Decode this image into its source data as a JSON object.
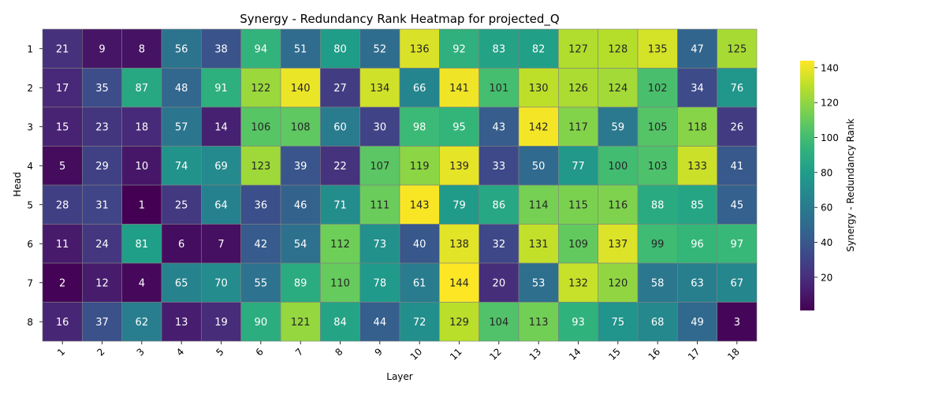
{
  "chart_data": {
    "type": "heatmap",
    "title": "Synergy - Redundancy Rank Heatmap for projected_Q",
    "xlabel": "Layer",
    "ylabel": "Head",
    "x_categories": [
      "1",
      "2",
      "3",
      "4",
      "5",
      "6",
      "7",
      "8",
      "9",
      "10",
      "11",
      "12",
      "13",
      "14",
      "15",
      "16",
      "17",
      "18"
    ],
    "y_categories": [
      "1",
      "2",
      "3",
      "4",
      "5",
      "6",
      "7",
      "8"
    ],
    "values": [
      [
        21,
        9,
        8,
        56,
        38,
        94,
        51,
        80,
        52,
        136,
        92,
        83,
        82,
        127,
        128,
        135,
        47,
        125
      ],
      [
        17,
        35,
        87,
        48,
        91,
        122,
        140,
        27,
        134,
        66,
        141,
        101,
        130,
        126,
        124,
        102,
        34,
        76
      ],
      [
        15,
        23,
        18,
        57,
        14,
        106,
        108,
        60,
        30,
        98,
        95,
        43,
        142,
        117,
        59,
        105,
        118,
        26
      ],
      [
        5,
        29,
        10,
        74,
        69,
        123,
        39,
        22,
        107,
        119,
        139,
        33,
        50,
        77,
        100,
        103,
        133,
        41
      ],
      [
        28,
        31,
        1,
        25,
        64,
        36,
        46,
        71,
        111,
        143,
        79,
        86,
        114,
        115,
        116,
        88,
        85,
        45
      ],
      [
        11,
        24,
        81,
        6,
        7,
        42,
        54,
        112,
        73,
        40,
        138,
        32,
        131,
        109,
        137,
        99,
        96,
        97
      ],
      [
        2,
        12,
        4,
        65,
        70,
        55,
        89,
        110,
        78,
        61,
        144,
        20,
        53,
        132,
        120,
        58,
        63,
        67
      ],
      [
        16,
        37,
        62,
        13,
        19,
        90,
        121,
        84,
        44,
        72,
        129,
        104,
        113,
        93,
        75,
        68,
        49,
        3
      ]
    ],
    "vmin": 1,
    "vmax": 144,
    "colormap": "viridis",
    "colorbar": {
      "label": "Synergy - Redundancy Rank",
      "ticks": [
        20,
        40,
        60,
        80,
        100,
        120,
        140
      ]
    },
    "cell_border_color": "#808080",
    "annotations": true
  }
}
